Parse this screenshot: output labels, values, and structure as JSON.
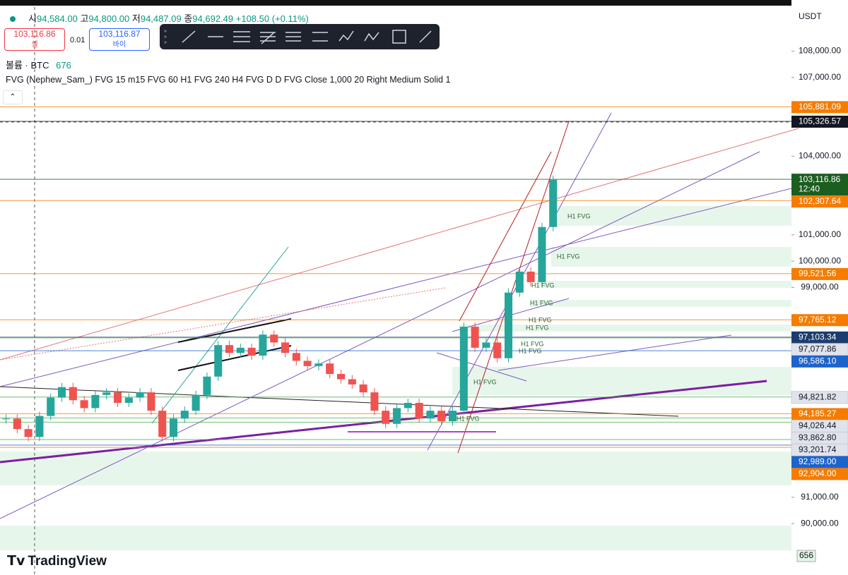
{
  "header": {
    "open_label": "시",
    "open": "94,584.00",
    "high_label": "고",
    "high": "94,800.00",
    "low_label": "저",
    "low": "94,487.09",
    "close_label": "종",
    "close": "94,692.49",
    "change": "+108.50 (+0.11%)"
  },
  "trade": {
    "sell_price": "103,116.86",
    "sell_label": "셀",
    "spread": "0.01",
    "buy_price": "103,116.87",
    "buy_label": "바이"
  },
  "volume": {
    "label": "볼륨 · BTC",
    "value": "676"
  },
  "indicator": "FVG (Nephew_Sam_) FVG 15 m15 FVG 60 H1 FVG 240 H4 FVG D D FVG Close 1,000 20 Right Medium Solid 1",
  "currency": "USDT",
  "brand": "TradingView",
  "chart": {
    "ylim": [
      88040,
      109950
    ],
    "yticks": [
      {
        "value": 108000,
        "label": "108,000.00"
      },
      {
        "value": 107000,
        "label": "107,000.00"
      },
      {
        "value": 104000,
        "label": "104,000.00"
      },
      {
        "value": 101000,
        "label": "101,000.00"
      },
      {
        "value": 100000,
        "label": "100,000.00"
      },
      {
        "value": 99000,
        "label": "99,000.00"
      },
      {
        "value": 91000,
        "label": "91,000.00"
      },
      {
        "value": 90000,
        "label": "90,000.00"
      }
    ],
    "levels": [
      {
        "value": 105881.09,
        "label": "105,881.09",
        "color": "#f57c00"
      },
      {
        "value": 105326.57,
        "label": "105,326.57",
        "color": "#131722"
      },
      {
        "value": 103116.86,
        "label": "103,116.86",
        "color": "#1b5e20"
      },
      {
        "value": 102307.64,
        "label": "102,307.64",
        "color": "#f57c00"
      },
      {
        "value": 99521.56,
        "label": "99,521.56",
        "color": "#f57c00"
      },
      {
        "value": 97765.12,
        "label": "97,765.12",
        "color": "#f57c00"
      },
      {
        "value": 97103.34,
        "label": "97,103.34",
        "color": "#1c3d6e"
      },
      {
        "value": 97077.86,
        "label": "97,077.86",
        "color": "#e0e3eb"
      },
      {
        "value": 96586.1,
        "label": "96,586.10",
        "color": "#1e63c9"
      },
      {
        "value": 94821.82,
        "label": "94,821.82",
        "color": "#e0e3eb"
      },
      {
        "value": 94185.27,
        "label": "94,185.27",
        "color": "#f57c00"
      },
      {
        "value": 94026.44,
        "label": "94,026.44",
        "color": "#e0e3eb"
      },
      {
        "value": 93862.8,
        "label": "93,862.80",
        "color": "#e0e3eb"
      },
      {
        "value": 93201.74,
        "label": "93,201.74",
        "color": "#e0e3eb"
      },
      {
        "value": 92989,
        "label": "92,989.00",
        "color": "#1e63c9"
      },
      {
        "value": 92904,
        "label": "92,904.00",
        "color": "#f57c00"
      }
    ],
    "countdown": "12:40",
    "volume_tag": "656",
    "closes": [
      94000,
      93600,
      93300,
      94100,
      94800,
      95200,
      94700,
      94400,
      94900,
      95000,
      94600,
      94800,
      95000,
      94300,
      93300,
      94000,
      94300,
      94900,
      95600,
      96800,
      96500,
      96700,
      96400,
      97200,
      96900,
      96500,
      96200,
      96000,
      96100,
      95700,
      95500,
      95300,
      95000,
      94300,
      93800,
      94400,
      94600,
      94000,
      94300,
      93900,
      94300,
      97500,
      96700,
      96900,
      96300,
      98800,
      99600,
      99200,
      101300,
      103100
    ],
    "fvg_labels": [
      "H1 FVG",
      "H1 FVG",
      "H1 FVG",
      "H1 FVG",
      "H1 FVG",
      "H1 FVG",
      "H1 FVG",
      "H1 FVG",
      "H1 FVG",
      "H1 FVG"
    ]
  }
}
